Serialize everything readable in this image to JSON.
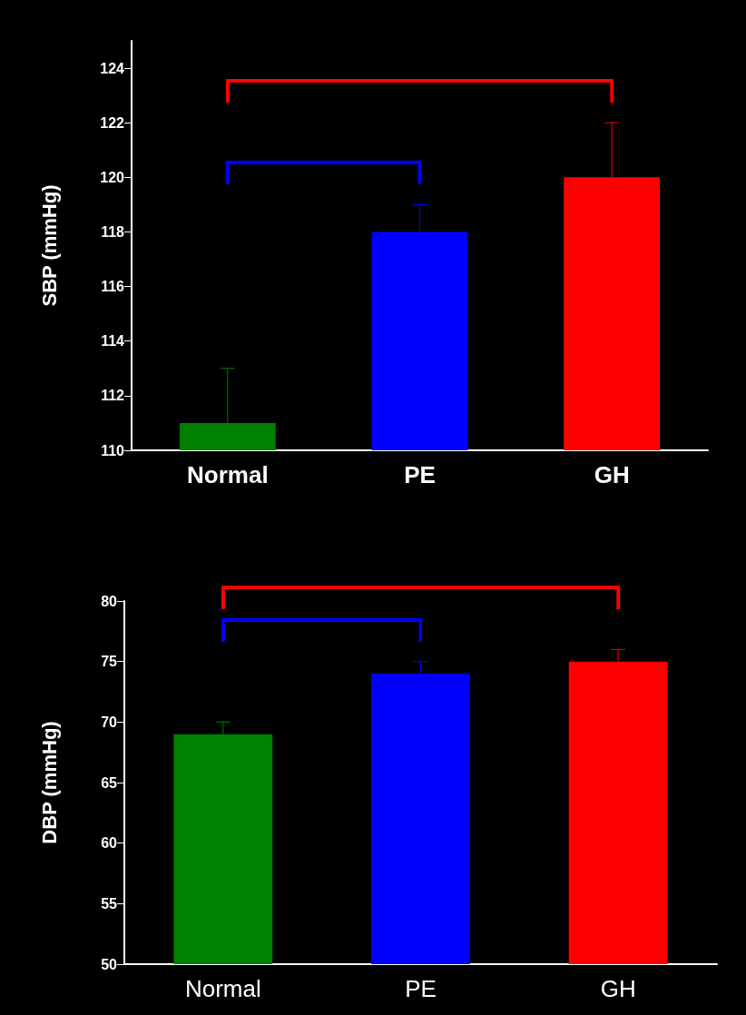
{
  "chart_data": [
    {
      "type": "bar",
      "ylabel": "SBP (mmHg)",
      "categories": [
        "Normal",
        "PE",
        "GH"
      ],
      "values": [
        111,
        118,
        120
      ],
      "colors": [
        "#008000",
        "#0000ff",
        "#ff0000"
      ],
      "errors": [
        [
          111,
          113
        ],
        [
          118,
          119
        ],
        [
          120,
          122
        ]
      ],
      "ylim": [
        110,
        125
      ],
      "yticks": [
        110,
        112,
        114,
        116,
        118,
        120,
        122,
        124
      ]
    },
    {
      "type": "bar",
      "ylabel": "DBP (mmHg)",
      "categories": [
        "Normal",
        "PE",
        "GH"
      ],
      "values": [
        69,
        74,
        75
      ],
      "colors": [
        "#008000",
        "#0000ff",
        "#ff0000"
      ],
      "errors": [
        [
          69,
          70
        ],
        [
          74,
          75
        ],
        [
          75,
          76
        ]
      ],
      "ylim": [
        50,
        80
      ],
      "yticks": [
        50,
        55,
        60,
        65,
        70,
        75,
        80
      ]
    }
  ]
}
